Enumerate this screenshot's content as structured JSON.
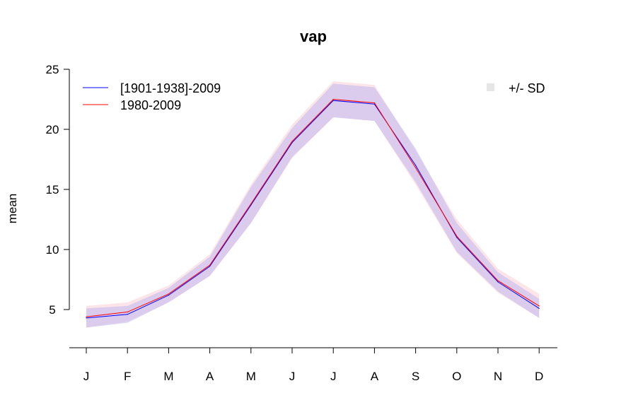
{
  "chart_data": {
    "type": "line",
    "title": "vap",
    "xlabel": "",
    "ylabel": "mean",
    "categories": [
      "J",
      "F",
      "M",
      "A",
      "M",
      "J",
      "J",
      "A",
      "S",
      "O",
      "N",
      "D"
    ],
    "ylim": [
      2,
      25
    ],
    "yticks": [
      5,
      10,
      15,
      20,
      25
    ],
    "grid": false,
    "legend_position": "top-left",
    "band_legend_position": "top-right",
    "band_label": "+/- SD",
    "band_color": "#e6e6e6",
    "series": [
      {
        "name": "[1901-1938]-2009",
        "color": "#0000ff",
        "values": [
          4.3,
          4.6,
          6.2,
          8.6,
          13.7,
          18.9,
          22.4,
          22.1,
          17.0,
          11.0,
          7.3,
          5.1
        ],
        "sd": [
          0.8,
          0.7,
          0.6,
          0.8,
          1.5,
          1.2,
          1.4,
          1.4,
          1.4,
          1.2,
          0.8,
          0.8
        ],
        "band_fill": "#b4aaf0"
      },
      {
        "name": "1980-2009",
        "color": "#ff0000",
        "values": [
          4.4,
          4.8,
          6.3,
          8.7,
          13.8,
          19.0,
          22.5,
          22.2,
          16.8,
          11.1,
          7.4,
          5.3
        ],
        "sd": [
          0.9,
          0.8,
          0.7,
          0.9,
          1.6,
          1.4,
          1.5,
          1.5,
          1.4,
          1.4,
          1.0,
          1.0
        ],
        "band_fill": "#f5b4c0"
      }
    ]
  }
}
